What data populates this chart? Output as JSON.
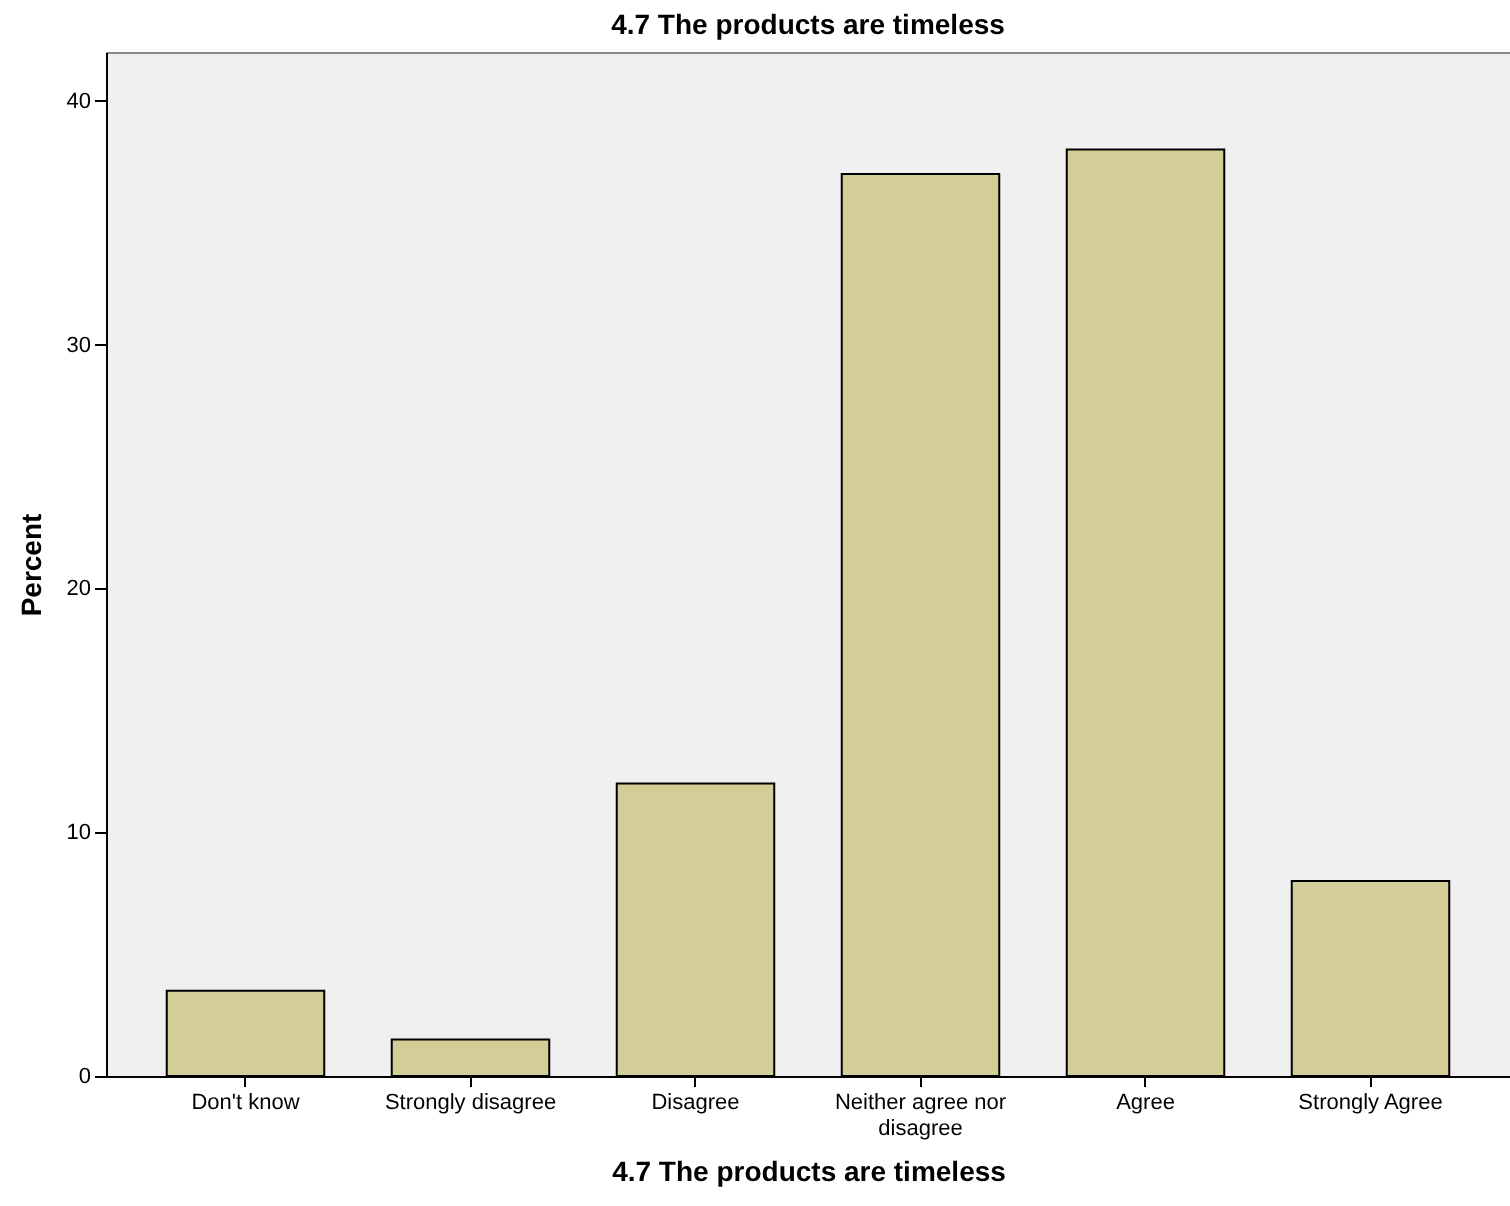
{
  "chart_data": {
    "type": "bar",
    "title": "4.7 The products are timeless",
    "xlabel": "4.7 The products are timeless",
    "ylabel": "Percent",
    "categories": [
      "Don't know",
      "Strongly disagree",
      "Disagree",
      "Neither agree nor disagree",
      "Agree",
      "Strongly Agree"
    ],
    "values": [
      3.5,
      1.5,
      12.0,
      37.0,
      38.0,
      8.0
    ],
    "color": "#d3ce97",
    "ylim": [
      0,
      42
    ],
    "yticks": [
      0,
      10,
      20,
      30,
      40
    ],
    "grid": false
  }
}
